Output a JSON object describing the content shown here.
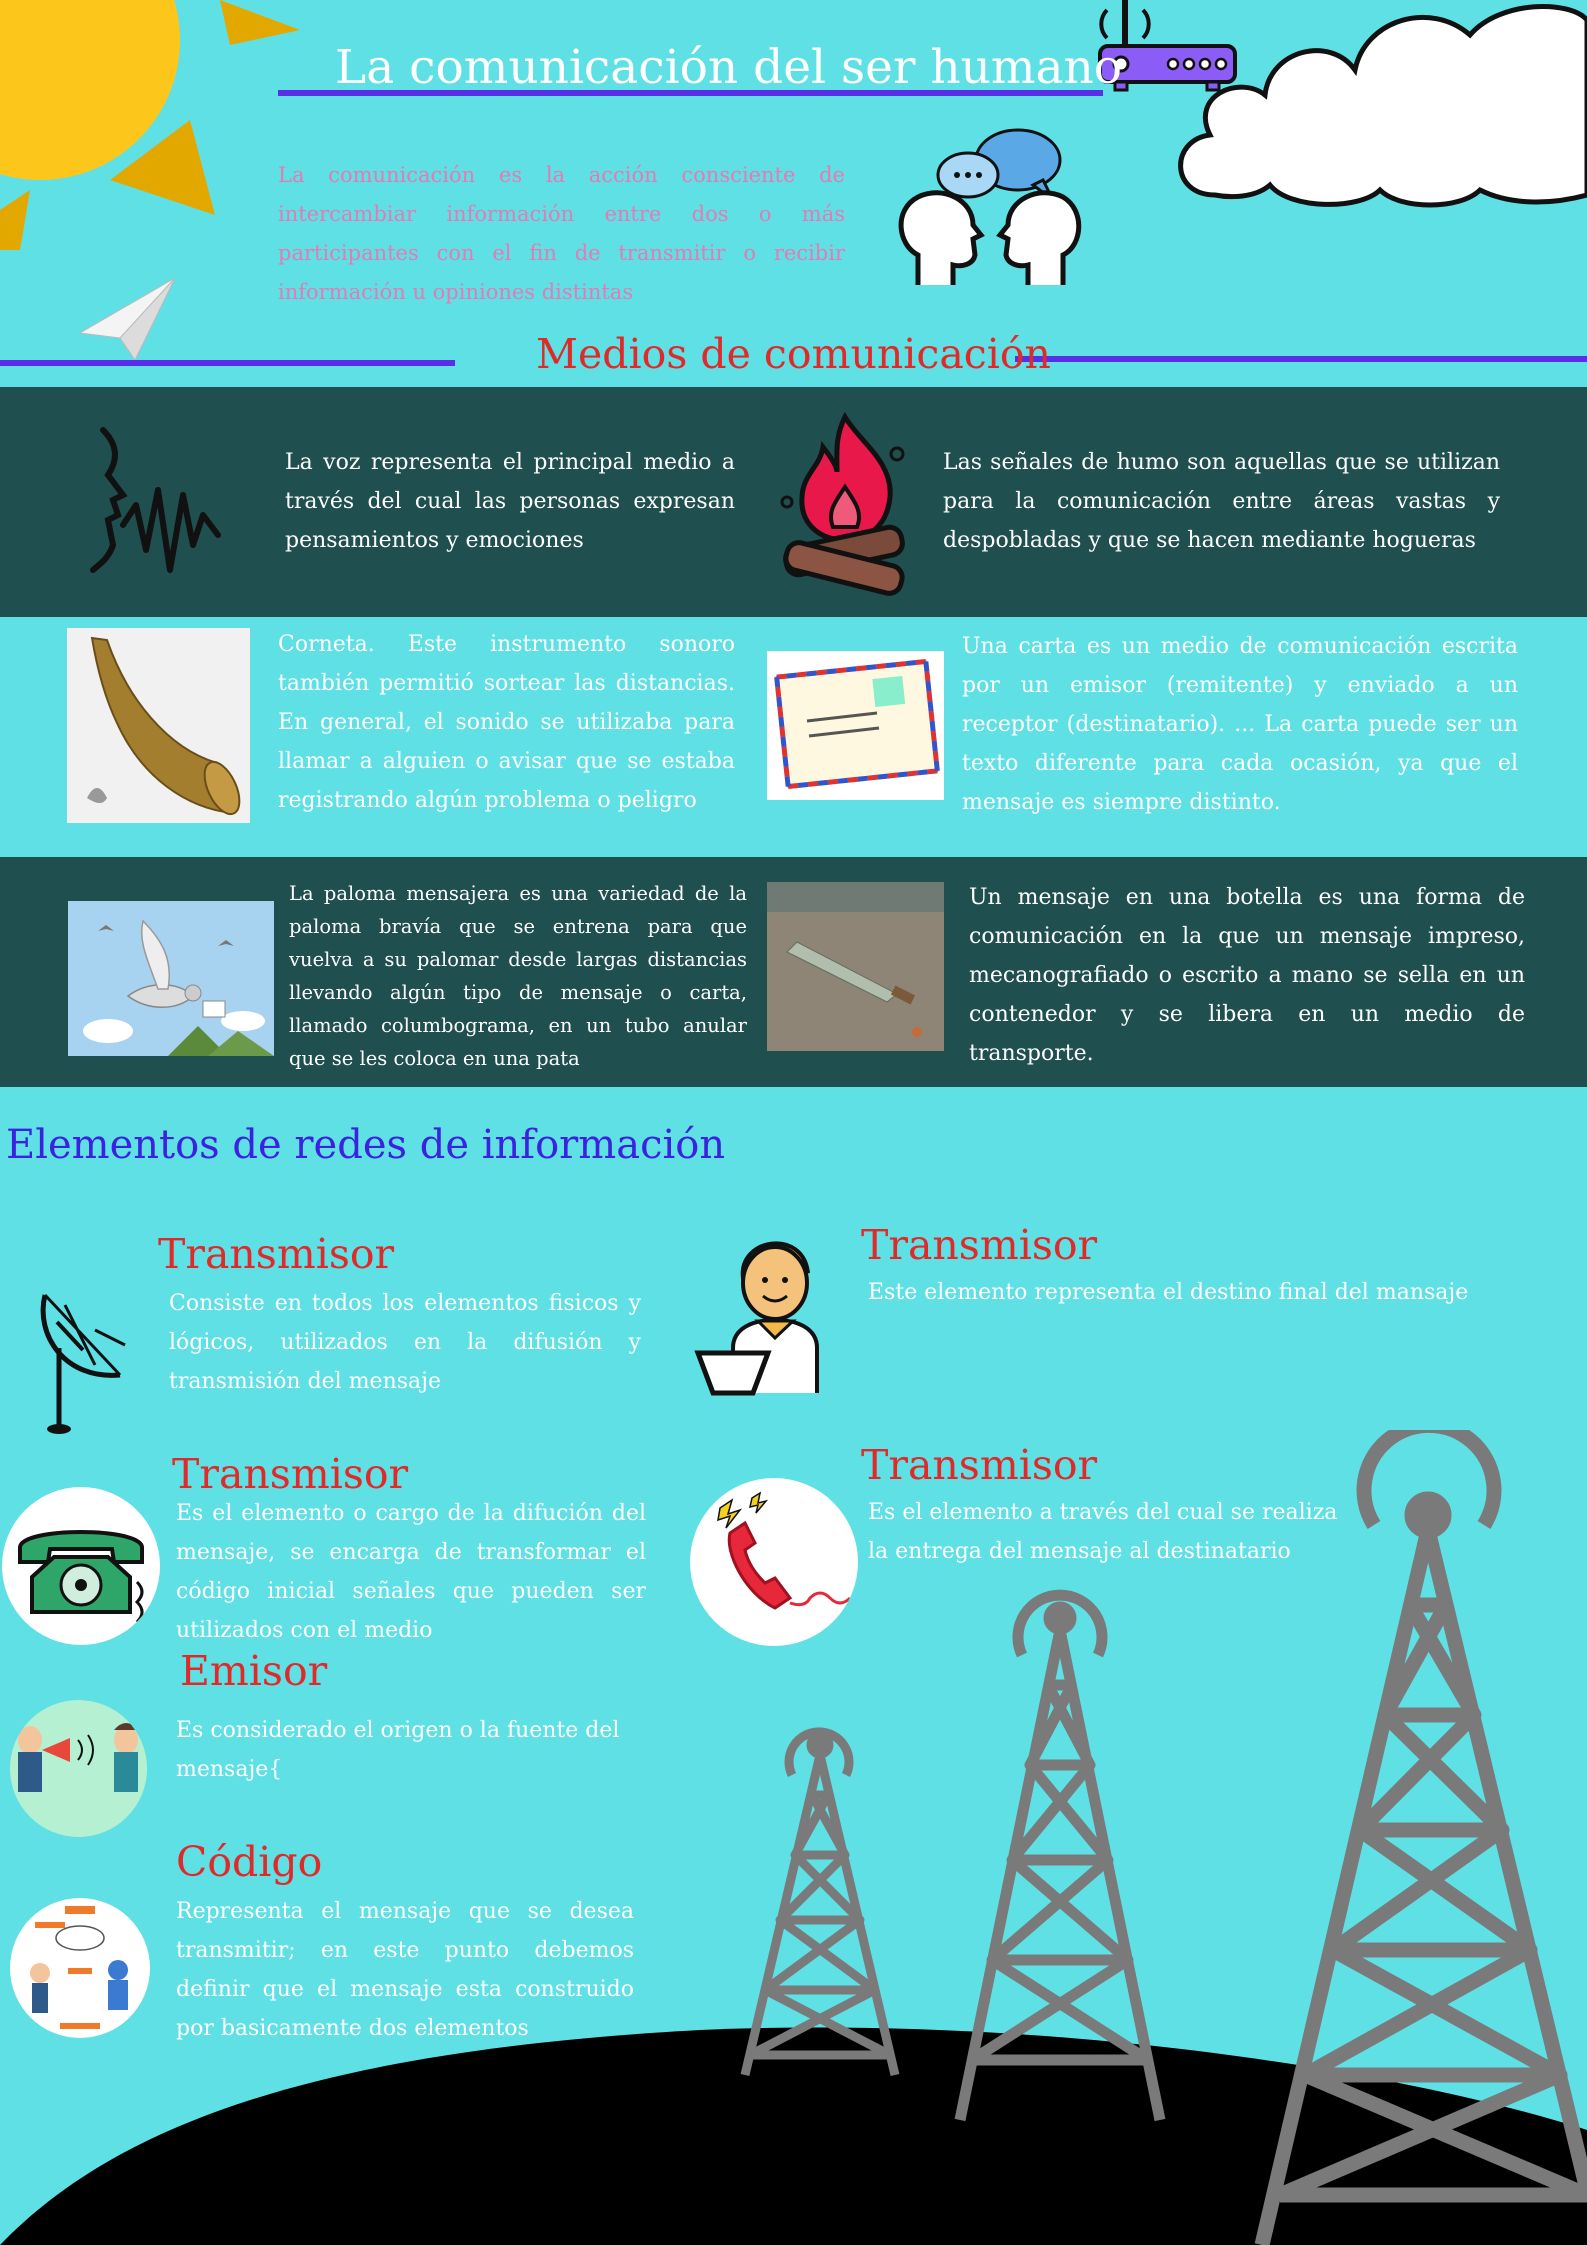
{
  "header": {
    "title": "La comunicación del ser humano",
    "intro": "La comunicación es la acción consciente de intercambiar información entre dos o más participantes con el fin de transmitir o recibir información u opiniones distintas"
  },
  "medios": {
    "heading": "Medios de comunicación",
    "items": [
      {
        "text": "La voz representa el principal medio a través del cual las personas expresan pensamientos y emociones",
        "icon": "voice-wave-icon"
      },
      {
        "text": "Las señales de humo son aquellas que se utilizan para la comunicación entre áreas vastas y despobladas y que se hacen mediante hogueras",
        "icon": "campfire-icon"
      },
      {
        "text": "Corneta. Este instrumento sonoro también permitió sortear las distancias. En general, el sonido se utilizaba para llamar a alguien o avisar que se estaba registrando algún problema o peligro",
        "icon": "horn-image"
      },
      {
        "text": "Una carta es un medio de comunicación escrita por un emisor (remitente) y enviado a un receptor (destinatario). ... La carta puede ser un texto diferente para cada ocasión, ya que el mensaje es siempre distinto.",
        "icon": "letter-envelope-image"
      },
      {
        "text": "La paloma mensajera  es una variedad de la paloma bravía que se entrena para que vuelva a su palomar desde largas distancias llevando algún tipo de mensaje o carta, llamado columbograma, en un tubo anular que se les coloca en una pata",
        "icon": "pigeon-image"
      },
      {
        "text": "Un mensaje en una botella es una forma de comunicación en la que un mensaje impreso, mecanografiado o escrito a mano se sella en un contenedor y se libera en un medio de transporte.",
        "icon": "bottle-message-image"
      }
    ]
  },
  "elementos": {
    "heading": "Elementos de redes de información",
    "items": [
      {
        "title": "Transmisor",
        "text": "Consiste en todos los elementos fisicos y lógicos, utilizados en la difusión y transmisión del mensaje",
        "icon": "satellite-dish-icon"
      },
      {
        "title": "Transmisor",
        "text": "Este elemento representa el destino final del mansaje",
        "icon": "person-receiver-icon"
      },
      {
        "title": "Transmisor",
        "text": "Es el elemento o cargo de la difución del mensaje, se encarga de transformar el código inicial señales que pueden ser utilizados con el medio",
        "icon": "telephone-icon"
      },
      {
        "title": "Transmisor",
        "text": "Es el elemento a través del cual se realiza la entrega del mensaje al destinatario",
        "icon": "red-phone-icon"
      },
      {
        "title": "Emisor",
        "text": "Es considerado el origen o la fuente del mensaje{",
        "icon": "megaphone-people-icon"
      },
      {
        "title": "Código",
        "text": "Representa el mensaje  que se desea transmitir; en este punto debemos definir que el mensaje esta construido por basicamente dos elementos",
        "icon": "code-diagram-icon"
      }
    ]
  },
  "colors": {
    "background": "#5fe0e5",
    "band": "#1f4f4f",
    "accent": "#5a2ee6",
    "heading_red": "#e02a2a",
    "heading_blue": "#3a22e0",
    "intro_pink": "#e57ab5"
  }
}
